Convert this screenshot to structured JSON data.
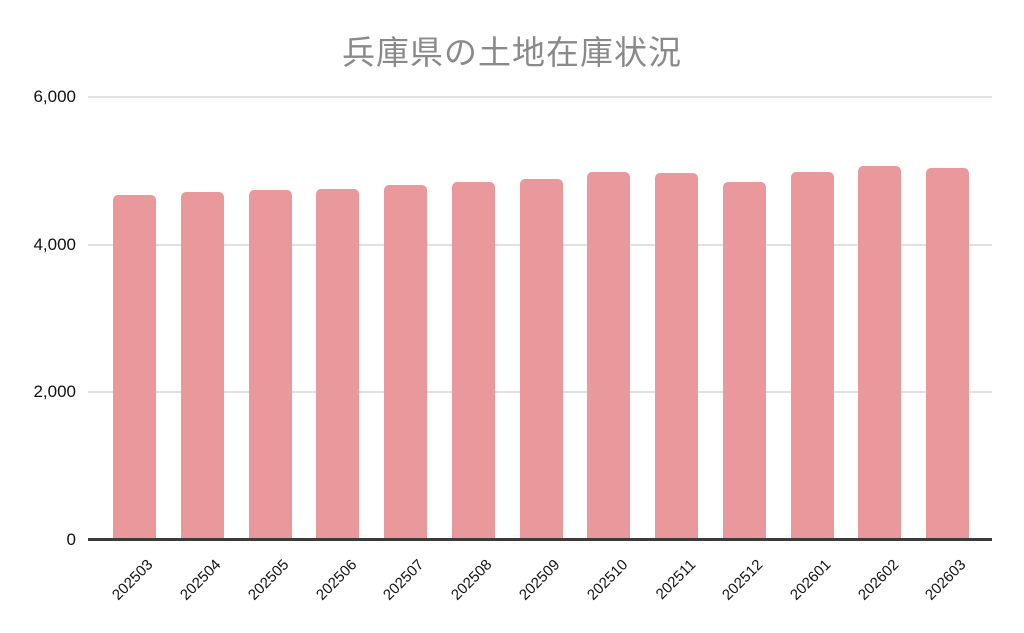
{
  "header": {
    "title": "兵庫県の土地在庫状況"
  },
  "colors": {
    "background": "#ffffff",
    "bar": "#e9999c",
    "gridline": "#e1e1e1",
    "axis": "#3b3b3b",
    "title_text": "#8a8a8a",
    "tick_text": "#111111"
  },
  "chart_data": {
    "type": "bar",
    "title": "兵庫県の土地在庫状況",
    "categories": [
      "202503",
      "202504",
      "202505",
      "202506",
      "202507",
      "202508",
      "202509",
      "202510",
      "202511",
      "202512",
      "202601",
      "202602",
      "202603"
    ],
    "values": [
      4670,
      4715,
      4740,
      4750,
      4805,
      4855,
      4890,
      4985,
      4975,
      4855,
      4980,
      5065,
      5035
    ],
    "xlabel": "",
    "ylabel": "",
    "ylim": [
      0,
      6000
    ],
    "y_ticks": [
      0,
      2000,
      4000,
      6000
    ],
    "y_tick_labels": [
      "0",
      "2,000",
      "4,000",
      "6,000"
    ],
    "grid": true,
    "legend": false,
    "x_tick_rotation_deg": 45
  }
}
